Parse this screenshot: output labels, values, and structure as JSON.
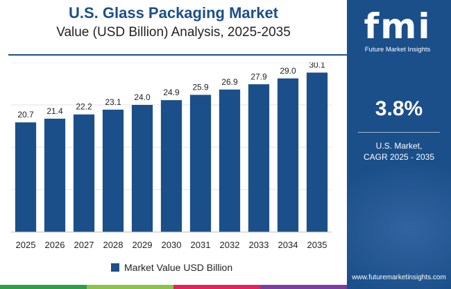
{
  "header": {
    "title": "U.S. Glass Packaging Market",
    "subtitle": "Value (USD Billion) Analysis, 2025-2035"
  },
  "chart_data": {
    "type": "bar",
    "title": "U.S. Glass Packaging Market",
    "subtitle": "Value (USD Billion) Analysis, 2025-2035",
    "categories": [
      "2025",
      "2026",
      "2027",
      "2028",
      "2029",
      "2030",
      "2031",
      "2032",
      "2033",
      "2034",
      "2035"
    ],
    "series": [
      {
        "name": "Market Value USD Billion",
        "values": [
          20.7,
          21.4,
          22.2,
          23.1,
          24.0,
          24.9,
          25.9,
          26.9,
          27.9,
          29.0,
          30.1
        ],
        "labels": [
          "20.7",
          "21.4",
          "22.2",
          "23.1",
          "24.0",
          "24.9",
          "25.9",
          "26.9",
          "27.9",
          "29.0",
          "30.1"
        ]
      }
    ],
    "xlabel": "",
    "ylabel": "",
    "ylim": [
      0,
      32
    ],
    "grid": true,
    "legend_position": "bottom",
    "color": "#1b4f8a"
  },
  "legend": {
    "label": "Market Value USD Billion"
  },
  "panel": {
    "logo_text": "fmi",
    "logo_caption": "Future Market Insights",
    "cagr_value": "3.8%",
    "cagr_label_line1": "U.S. Market,",
    "cagr_label_line2": "CAGR 2025 - 2035",
    "website": "www.futuremarketinsights.com"
  },
  "colors": {
    "brand": "#1b4f8a",
    "bottom_bar": [
      "#2e9e48",
      "#8bc34a",
      "#e0245e",
      "#7b3fa0"
    ]
  }
}
